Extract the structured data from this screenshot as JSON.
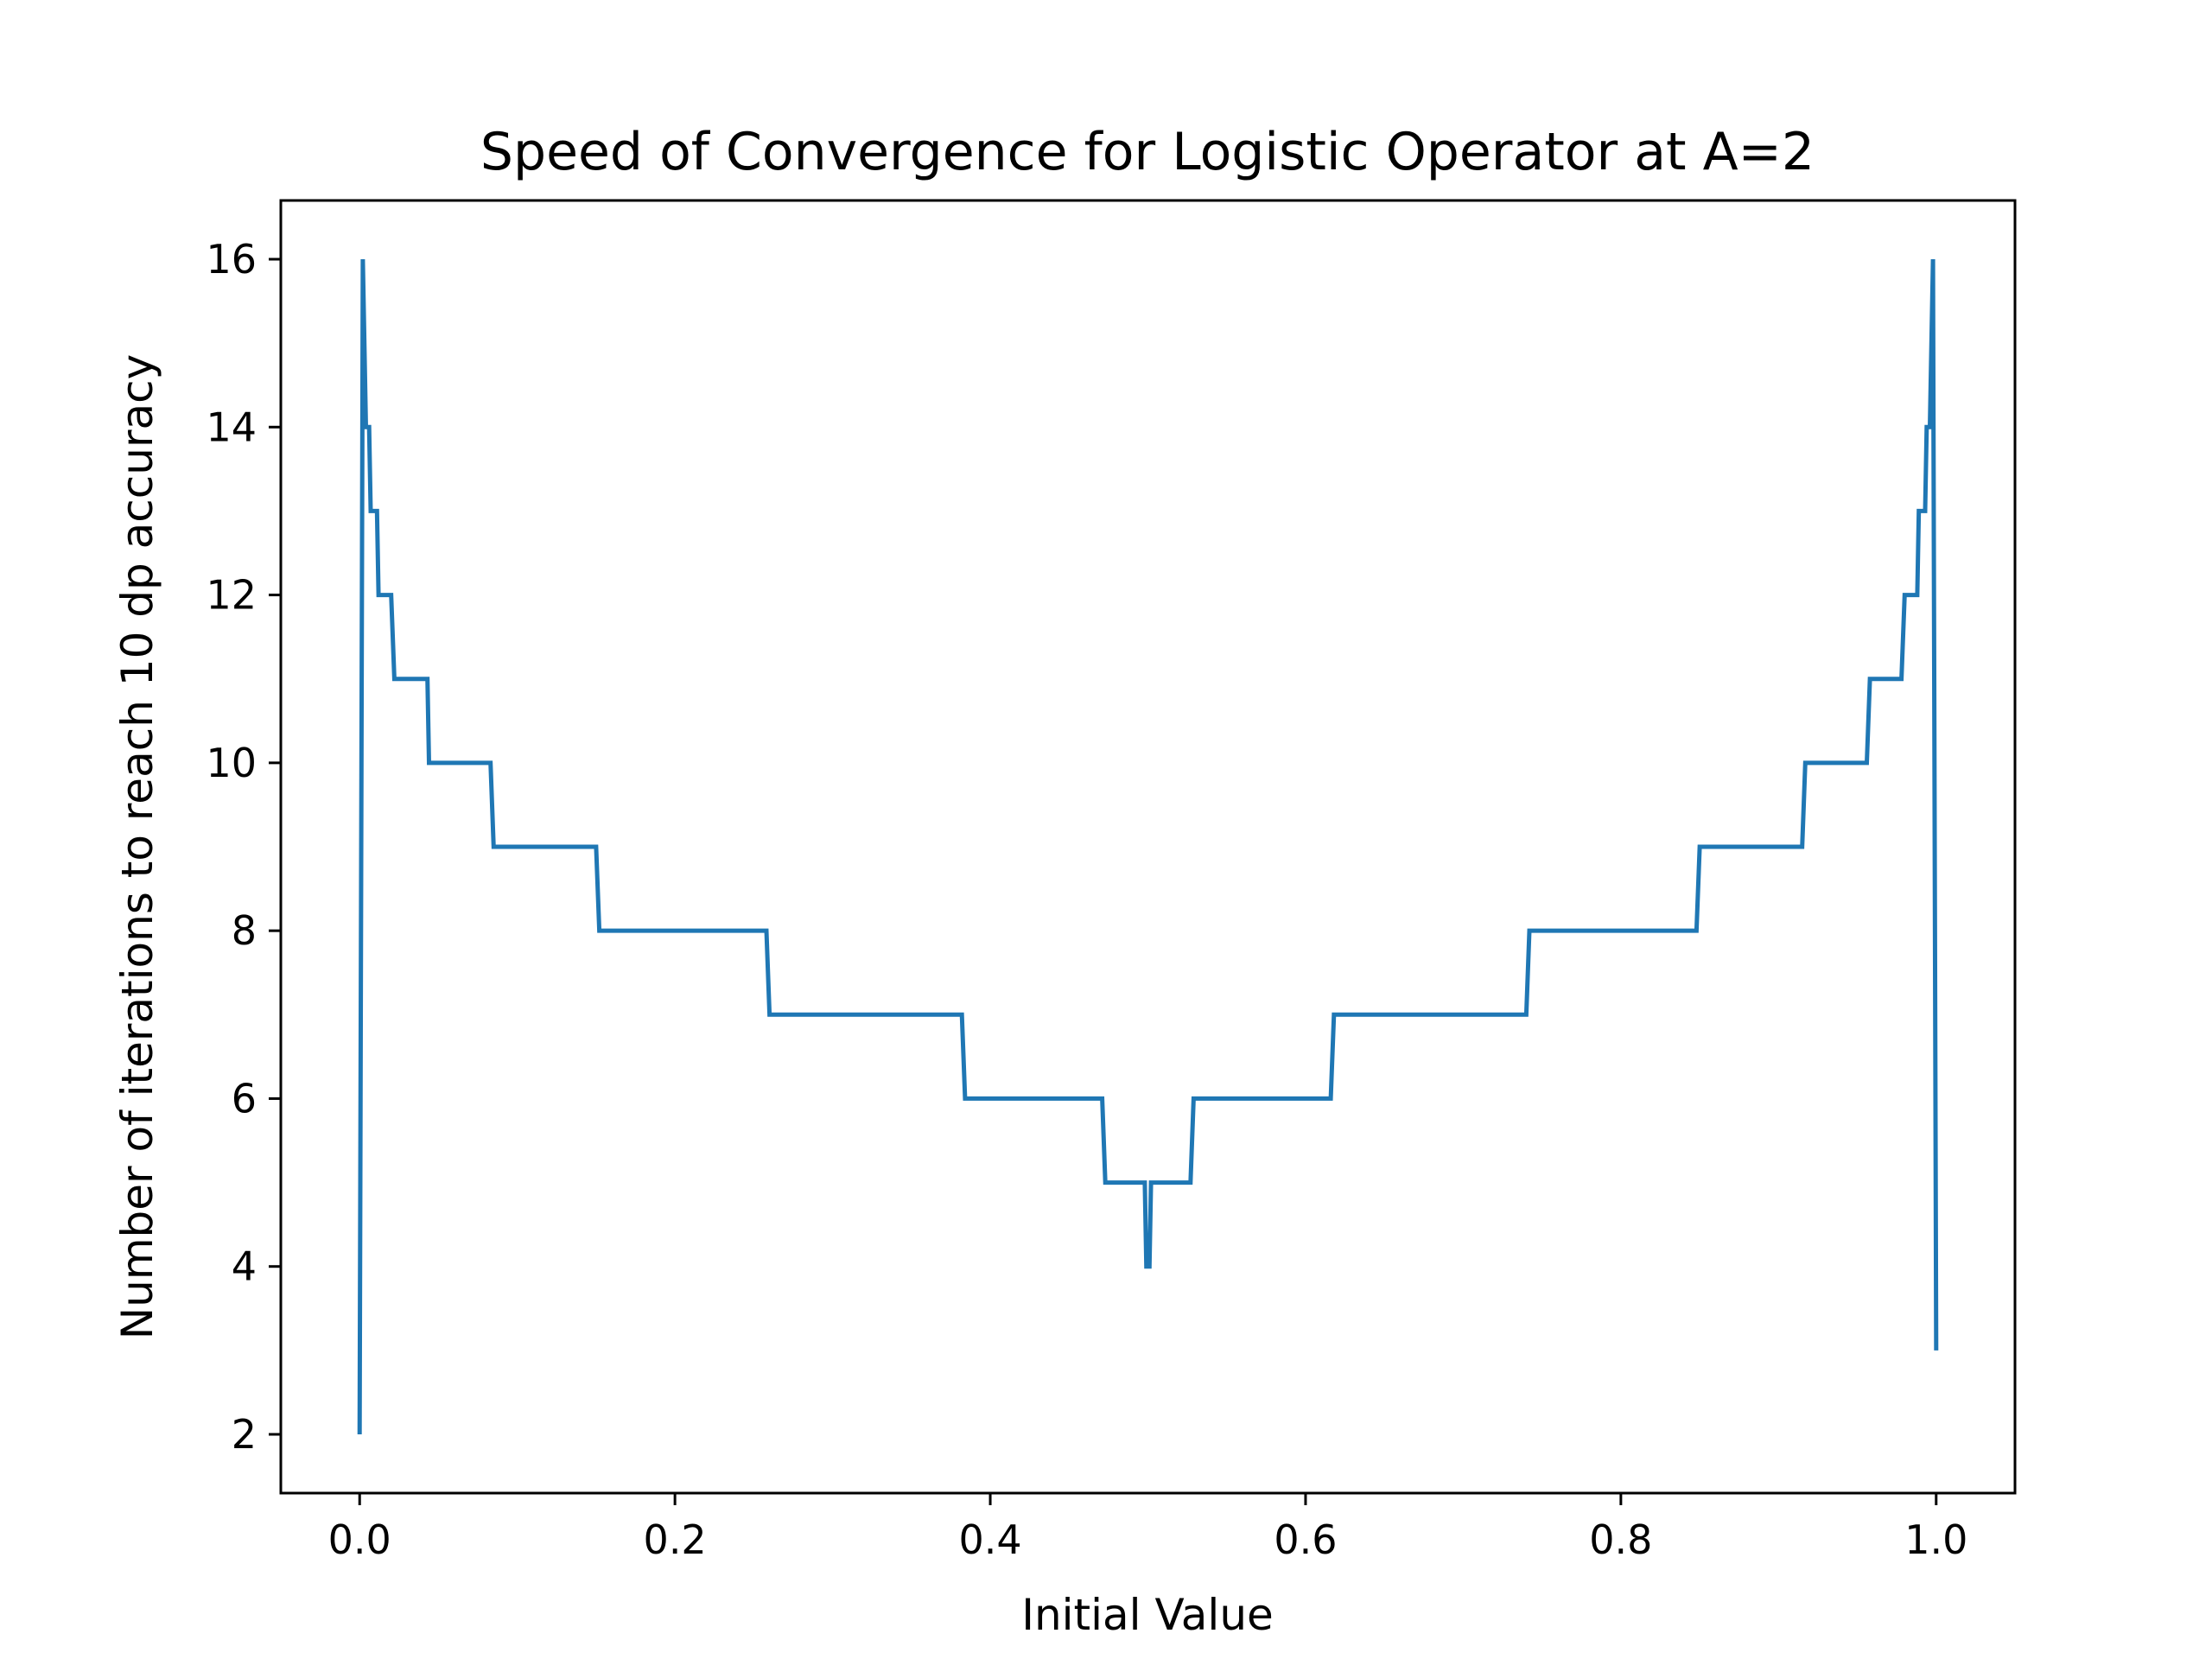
{
  "chart_data": {
    "type": "line",
    "title": "Speed of Convergence for Logistic Operator at A=2",
    "xlabel": "Initial Value",
    "ylabel": "Number of iterations to reach 10 dp accuracy",
    "xlim": [
      -0.05,
      1.05
    ],
    "ylim": [
      1.3,
      16.7
    ],
    "xticks": [
      0.0,
      0.2,
      0.4,
      0.6,
      0.8,
      1.0
    ],
    "xtick_labels": [
      "0.0",
      "0.2",
      "0.4",
      "0.6",
      "0.8",
      "1.0"
    ],
    "yticks": [
      2,
      4,
      6,
      8,
      10,
      12,
      14,
      16
    ],
    "ytick_labels": [
      "2",
      "4",
      "6",
      "8",
      "10",
      "12",
      "14",
      "16"
    ],
    "grid": false,
    "line_color": "#1f77b4",
    "series": [
      {
        "x": [
          0.0,
          0.002,
          0.004,
          0.006,
          0.007,
          0.011,
          0.012,
          0.02,
          0.022,
          0.043,
          0.044,
          0.083,
          0.085,
          0.15,
          0.152,
          0.258,
          0.26,
          0.382,
          0.384,
          0.471,
          0.473,
          0.498,
          0.499,
          0.501,
          0.502,
          0.527,
          0.529,
          0.616,
          0.618,
          0.74,
          0.742,
          0.848,
          0.85,
          0.915,
          0.917,
          0.956,
          0.958,
          0.978,
          0.98,
          0.988,
          0.989,
          0.993,
          0.994,
          0.996,
          0.998,
          1.0
        ],
        "y": [
          2,
          16,
          14,
          14,
          13,
          13,
          12,
          12,
          11,
          11,
          10,
          10,
          9,
          9,
          8,
          8,
          7,
          7,
          6,
          6,
          5,
          5,
          4,
          4,
          5,
          5,
          6,
          6,
          7,
          7,
          8,
          8,
          9,
          9,
          10,
          10,
          11,
          11,
          12,
          12,
          13,
          13,
          14,
          14,
          16,
          3
        ]
      }
    ]
  }
}
